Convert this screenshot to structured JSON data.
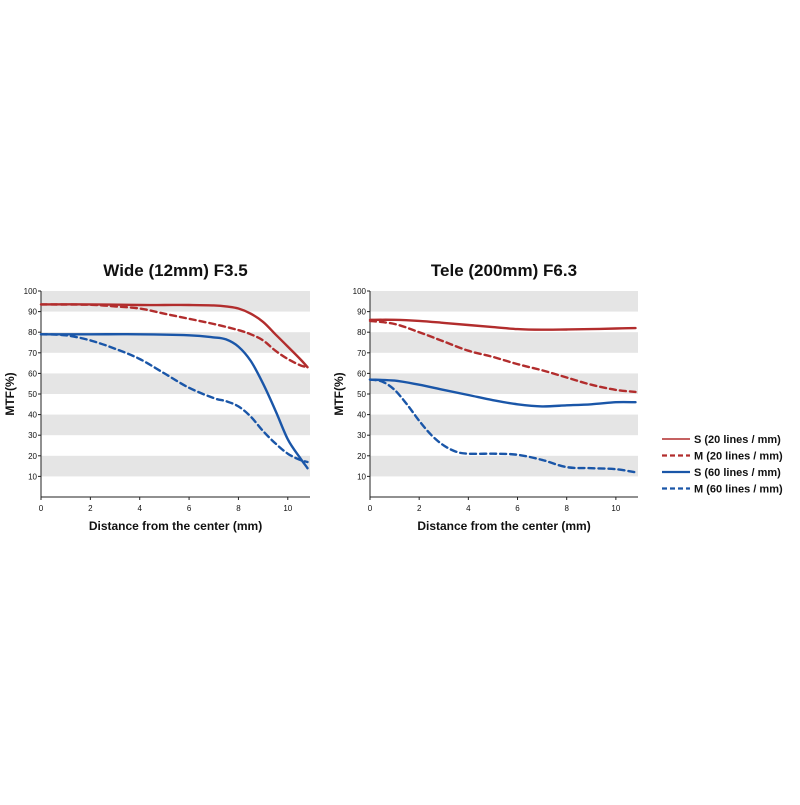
{
  "chart_data": [
    {
      "type": "line",
      "title": "Wide (12mm) F3.5",
      "xlabel": "Distance from the center (mm)",
      "ylabel": "MTF(%)",
      "xlim": [
        0,
        10.9
      ],
      "ylim": [
        0,
        100
      ],
      "xticks": [
        0,
        2,
        4,
        6,
        8,
        10
      ],
      "yticks": [
        10,
        20,
        30,
        40,
        50,
        60,
        70,
        80,
        90,
        100
      ],
      "series": [
        {
          "name": "S (20 lines / mm)",
          "color": "#b22d2d",
          "dash": false,
          "x": [
            0,
            2,
            4,
            5,
            6,
            7,
            7.5,
            8,
            8.5,
            9,
            9.5,
            10,
            10.5,
            10.8
          ],
          "y": [
            93.5,
            93.5,
            93.2,
            93.2,
            93.2,
            93,
            92.5,
            91.5,
            89,
            85,
            79,
            73,
            67,
            63
          ]
        },
        {
          "name": "M (20 lines / mm)",
          "color": "#b22d2d",
          "dash": true,
          "x": [
            0,
            2,
            3,
            4,
            5,
            6,
            7,
            8,
            8.5,
            9,
            9.5,
            10,
            10.5,
            10.8
          ],
          "y": [
            93.5,
            93.3,
            92.5,
            91.5,
            89,
            86.5,
            84,
            81,
            79,
            76,
            71,
            67,
            64,
            63
          ]
        },
        {
          "name": "S (60 lines / mm)",
          "color": "#1a56a8",
          "dash": false,
          "x": [
            0,
            2,
            4,
            6,
            7,
            7.5,
            8,
            8.5,
            9,
            9.5,
            10,
            10.5,
            10.8
          ],
          "y": [
            79,
            79,
            79,
            78.5,
            77.5,
            76.5,
            73,
            66,
            55,
            42,
            28,
            19,
            14
          ]
        },
        {
          "name": "M (60 lines / mm)",
          "color": "#1a56a8",
          "dash": true,
          "x": [
            0,
            1,
            2,
            3,
            4,
            5,
            6,
            7,
            7.5,
            8,
            8.5,
            9,
            9.5,
            10,
            10.5,
            10.8
          ],
          "y": [
            79,
            78.5,
            76,
            72,
            67,
            60,
            53,
            48,
            46.5,
            44,
            39,
            32,
            26,
            21,
            18,
            17
          ]
        }
      ]
    },
    {
      "type": "line",
      "title": "Tele (200mm) F6.3",
      "xlabel": "Distance from the center (mm)",
      "ylabel": "MTF(%)",
      "xlim": [
        0,
        10.9
      ],
      "ylim": [
        0,
        100
      ],
      "xticks": [
        0,
        2,
        4,
        6,
        8,
        10
      ],
      "yticks": [
        10,
        20,
        30,
        40,
        50,
        60,
        70,
        80,
        90,
        100
      ],
      "series": [
        {
          "name": "S (20 lines / mm)",
          "color": "#b22d2d",
          "dash": false,
          "x": [
            0,
            1,
            2,
            3,
            4,
            5,
            6,
            7,
            8,
            9,
            10,
            10.8
          ],
          "y": [
            86,
            86,
            85.5,
            84.5,
            83.5,
            82.5,
            81.5,
            81.2,
            81.3,
            81.5,
            81.8,
            82
          ]
        },
        {
          "name": "M (20 lines / mm)",
          "color": "#b22d2d",
          "dash": true,
          "x": [
            0,
            1,
            2,
            3,
            4,
            5,
            6,
            7,
            8,
            9,
            10,
            10.8
          ],
          "y": [
            85.5,
            84,
            80,
            75.5,
            71,
            68,
            64.5,
            61.5,
            58,
            54.5,
            52,
            51
          ]
        },
        {
          "name": "S (60 lines / mm)",
          "color": "#1a56a8",
          "dash": false,
          "x": [
            0,
            1,
            2,
            3,
            4,
            5,
            6,
            7,
            8,
            9,
            10,
            10.8
          ],
          "y": [
            57,
            56.5,
            54.5,
            52,
            49.5,
            47,
            45,
            44,
            44.5,
            45,
            46,
            46
          ]
        },
        {
          "name": "M (60 lines / mm)",
          "color": "#1a56a8",
          "dash": true,
          "x": [
            0,
            0.5,
            1,
            1.5,
            2,
            2.5,
            3,
            3.5,
            4,
            5,
            6,
            7,
            8,
            9,
            10,
            10.8
          ],
          "y": [
            57,
            56,
            52,
            45,
            37,
            30,
            25,
            22,
            21,
            21,
            20.5,
            18,
            14.5,
            14,
            13.5,
            12
          ]
        }
      ]
    }
  ],
  "legend": {
    "items": [
      {
        "label": "S  (20 lines / mm)",
        "color": "#b22d2d",
        "dash": false
      },
      {
        "label": "M (20 lines / mm)",
        "color": "#b22d2d",
        "dash": true
      },
      {
        "label": "S  (60 lines / mm)",
        "color": "#1a56a8",
        "dash": false
      },
      {
        "label": "M (60 lines / mm)",
        "color": "#1a56a8",
        "dash": true
      }
    ]
  }
}
